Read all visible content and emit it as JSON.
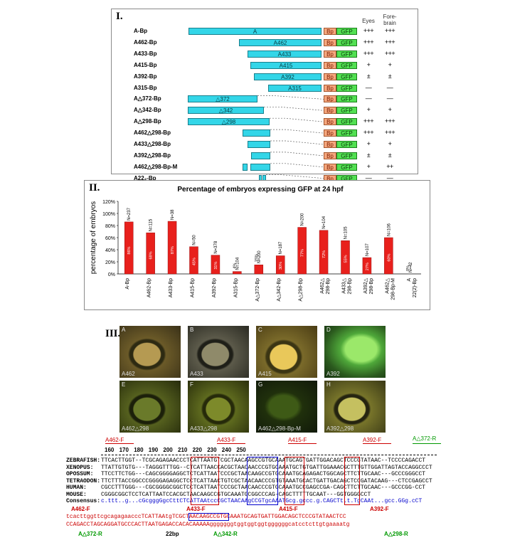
{
  "panel1": {
    "label": "I.",
    "headers": {
      "eyes": "Eyes",
      "forebrain_1": "Fore-",
      "forebrain_2": "brain"
    },
    "bp_label": "Bp",
    "gfp_label": "GFP",
    "rows": [
      {
        "name": "A-Bp",
        "seg": "A",
        "eyes": "+++",
        "fore": "+++"
      },
      {
        "name": "A462-Bp",
        "seg": "A462",
        "eyes": "+++",
        "fore": "+++"
      },
      {
        "name": "A433-Bp",
        "seg": "A433",
        "eyes": "+++",
        "fore": "+++"
      },
      {
        "name": "A415-Bp",
        "seg": "A415",
        "eyes": "+",
        "fore": "+"
      },
      {
        "name": "A392-Bp",
        "seg": "A392",
        "eyes": "±",
        "fore": "±"
      },
      {
        "name": "A315-Bp",
        "seg": "A315",
        "eyes": "—",
        "fore": "—"
      },
      {
        "name": "A△372-Bp",
        "seg": "△372",
        "eyes": "—",
        "fore": "—"
      },
      {
        "name": "A△342-Bp",
        "seg": "△342",
        "eyes": "+",
        "fore": "+"
      },
      {
        "name": "A△298-Bp",
        "seg": "△298",
        "eyes": "+++",
        "fore": "+++"
      },
      {
        "name": "A462△298-Bp",
        "seg": "",
        "eyes": "+++",
        "fore": "+++"
      },
      {
        "name": "A433△298-Bp",
        "seg": "",
        "eyes": "+",
        "fore": "+"
      },
      {
        "name": "A392△298-Bp",
        "seg": "",
        "eyes": "±",
        "fore": "±"
      },
      {
        "name": "A462△298-Bp-M",
        "seg": "",
        "eyes": "+",
        "fore": "++"
      },
      {
        "name": "A22₂-Bp",
        "seg": "",
        "eyes": "—",
        "fore": "—"
      }
    ]
  },
  "panel2": {
    "label": "II.",
    "chart_data": {
      "type": "bar",
      "title": "Percentage of embryos expressing GFP at 24 hpf",
      "ylabel": "percentage of embryos",
      "ylim": [
        0,
        120
      ],
      "yticks": [
        "0%",
        "20%",
        "40%",
        "60%",
        "80%",
        "100%",
        "120%"
      ],
      "categories": [
        "A-Bp",
        "A462-Bp",
        "A433-Bp",
        "A415-Bp",
        "A392-Bp",
        "A315-Bp",
        "A△372-Bp",
        "A△342-Bp",
        "A△298-Bp",
        "A462△ 298-Bp",
        "A433△ 298-Bp",
        "A392△ 298-Bp",
        "A462△ 298-Bp-M",
        "A 22(2)-Bp"
      ],
      "values": [
        86,
        68,
        87,
        45,
        31,
        4,
        15,
        30,
        77,
        72,
        55,
        27,
        60,
        0
      ],
      "n_labels": [
        "N=237",
        "N=115",
        "N=38",
        "N=50",
        "N=378",
        "N=104",
        "N=200",
        "N=187",
        "N=200",
        "N=104",
        "N=105",
        "N=107",
        "N=106",
        "N=42"
      ],
      "bar_texts": [
        "86%",
        "68%",
        "87%",
        "45%",
        "31%",
        "4%",
        "15%",
        "30%",
        "77%",
        "72%",
        "55%",
        "27%",
        "60%",
        "0%"
      ],
      "color": "#e8201c"
    }
  },
  "panel3": {
    "label": "III.",
    "photos": [
      {
        "letter": "A",
        "caption": "A462"
      },
      {
        "letter": "B",
        "caption": "A433"
      },
      {
        "letter": "C",
        "caption": "A415"
      },
      {
        "letter": "D",
        "caption": "A392"
      },
      {
        "letter": "E",
        "caption": "A462△298"
      },
      {
        "letter": "F",
        "caption": "A433△298"
      },
      {
        "letter": "G",
        "caption": "A462△298-Bp-M"
      },
      {
        "letter": "H",
        "caption": "A392△298"
      }
    ]
  },
  "alignment": {
    "ruler": [
      "160",
      "170",
      "180",
      "190",
      "200",
      "210",
      "220",
      "230",
      "240",
      "250"
    ],
    "primers_top": [
      "A462-F",
      "A433-F",
      "A415-F",
      "A392-F",
      "A△372-R"
    ],
    "species": [
      "ZEBRAFISH:",
      "XENOPUS:",
      "OPOSSUM:",
      "TETRAODON:",
      "HUMAN:",
      "MOUSE:",
      "Consensus:"
    ],
    "seqs": [
      "TTCACTTGGT--TCGCAGAGAACCCTCATTAATGTCGCTAACAAGCCGTGCAAATGCAGTGATTGGACAGCTCCCGTATAAC--TCCCCAGACCT",
      "TTATTGTGTG---TAGGGTTTGG--CTCATTAACCACGCTAACAACCCGTGCAAATGCTGTGATTGGAAACGCTTTGTTGGATTAGTACCAGGCCCT",
      "TTCCTTCTGG---CAGCGGGGAGGCTCTCATTAATCCCGCTAACAAGCCGTGCAAATGCAGAGACTGGCAGCTTCTTGCAAC---GCCCGGGCCT",
      "TTCTTTACCGGCCCGGGGAGAGGCTCCTCATTAACTGTCGCTAACAACCCGTGTAAATGCACTGATTGACAGCTCCGATACAAG---CTCCGAGCCT",
      "CGCCTTTGGG---CGCGGGGCGGCTCCTCATTAATCCCGCTAACAACCCGTGCAAATGCCGAGCCGA-CAGCTTCTTGCAAC---GCCCGG-CCT",
      "CGGGCGGCTCCTCATTAATCCACGCTAACAAGCCGTGCAAATGCGGCCCAG-CAGCTTTTTGCAAT---GGTGGGGCCT",
      "c.ttt..g...cGcgggGgcCttCTCATTAAtccCGCTAACAAgCCGTgcAAATGcg.gccc.g.CAGCTt.t.TgCAAt...gcc.GGg.cCT"
    ],
    "bottom_seq_1": "tcacttggttcgcagagaacccTCATTAAtgTCGCTAACAAGCCGTGCAAATGCAGTGATTGGACAGCTCCCGTATAACTCC",
    "bottom_seq_2": "CCAGACCTAGCAGGATGCCCACTTAATGAGACCACACAAAAAgggggggtggtggtggtggggggcatcctcttgtgaaaatg",
    "primers_bottom": [
      "A462-F",
      "A433-F",
      "A415-F",
      "A392-F",
      "A△372-R",
      "A△342-R",
      "A△298-R"
    ],
    "bp22": "22bp"
  }
}
